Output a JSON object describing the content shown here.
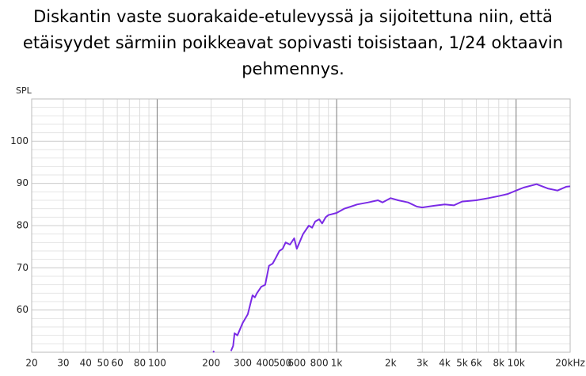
{
  "chart_data": {
    "type": "line",
    "title": [
      "Diskantin vaste suorakaide-etulevyssä ja sijoitettuna niin, että",
      "etäisyydet särmiin poikkeavat sopivasti toisistaan, 1/24 oktaavin",
      "pehmennys."
    ],
    "y_label": "SPL",
    "log_x": true,
    "xlim": [
      20,
      20000
    ],
    "ylim": [
      50,
      110
    ],
    "xticks": [
      20,
      30,
      40,
      50,
      60,
      80,
      100,
      200,
      300,
      400,
      500,
      600,
      800,
      {
        "value": 1000,
        "label": "1k"
      },
      {
        "value": 2000,
        "label": "2k"
      },
      {
        "value": 3000,
        "label": "3k"
      },
      {
        "value": 4000,
        "label": "4k"
      },
      {
        "value": 5000,
        "label": "5k"
      },
      {
        "value": 6000,
        "label": "6k"
      },
      {
        "value": 8000,
        "label": "8k"
      },
      {
        "value": 10000,
        "label": "10k"
      },
      {
        "value": 20000,
        "label": "20kHz"
      }
    ],
    "x_minor_grid": [
      70,
      90,
      700,
      900,
      7000,
      9000
    ],
    "yticks": [
      60,
      70,
      80,
      90,
      100
    ],
    "y_grid_step": 2,
    "grid": true,
    "color": "#7a2be6",
    "x": [
      205,
      208,
      230,
      258,
      265,
      270,
      280,
      290,
      300,
      320,
      340,
      350,
      360,
      380,
      400,
      420,
      440,
      460,
      480,
      500,
      520,
      550,
      580,
      600,
      650,
      700,
      730,
      760,
      800,
      830,
      870,
      900,
      1000,
      1100,
      1200,
      1300,
      1500,
      1700,
      1800,
      2000,
      2200,
      2500,
      2800,
      3000,
      3500,
      4000,
      4500,
      5000,
      6000,
      7000,
      8000,
      9000,
      10000,
      11000,
      13000,
      15000,
      17000,
      19000,
      20000
    ],
    "values": [
      50.3,
      50.0,
      null,
      50.3,
      51.5,
      54.5,
      54.0,
      55.5,
      57.0,
      59.0,
      63.5,
      63.0,
      64.0,
      65.5,
      66.0,
      70.5,
      71.0,
      72.5,
      74.0,
      74.5,
      76.0,
      75.5,
      77.0,
      74.5,
      78.0,
      80.0,
      79.5,
      81.0,
      81.5,
      80.5,
      82.0,
      82.5,
      83.0,
      84.0,
      84.5,
      85.0,
      85.5,
      86.0,
      85.5,
      86.5,
      86.0,
      85.5,
      84.5,
      84.3,
      84.7,
      85.0,
      84.8,
      85.7,
      86.0,
      86.5,
      87.0,
      87.5,
      88.3,
      89.0,
      89.8,
      88.8,
      88.3,
      89.2,
      89.3
    ]
  }
}
